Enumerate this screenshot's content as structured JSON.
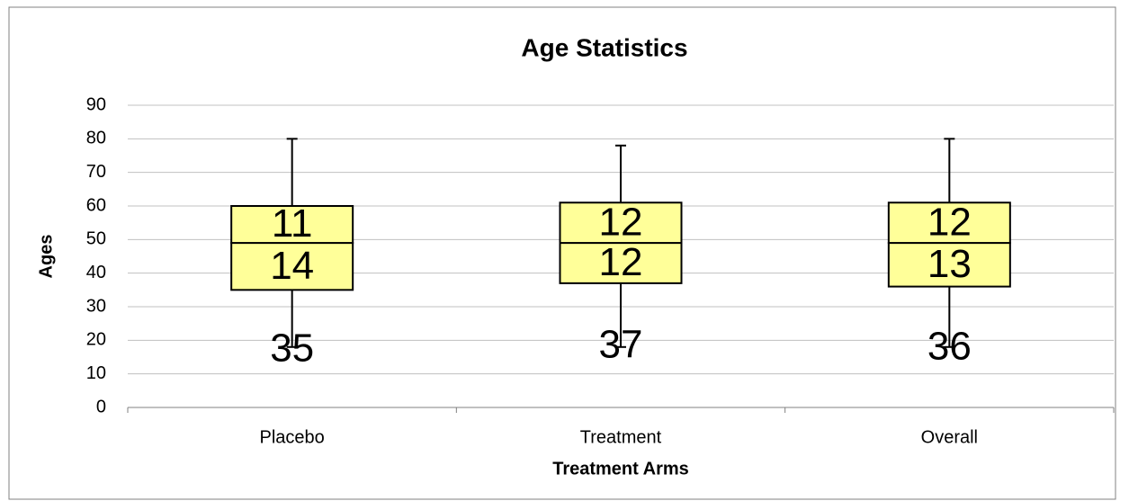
{
  "chart_data": {
    "type": "box",
    "title": "Age Statistics",
    "x_label": "Treatment Arms",
    "y_label": "Ages",
    "categories": [
      "Placebo",
      "Treatment",
      "Overall"
    ],
    "series": [
      {
        "values": [
          35,
          37,
          36
        ]
      },
      {
        "color": "#ffff99",
        "values": [
          14,
          12,
          13
        ]
      },
      {
        "color": "#ffff99",
        "values": [
          11,
          12,
          12
        ]
      }
    ],
    "whisker_low": [
      18,
      18,
      18
    ],
    "whisker_high": [
      80,
      78,
      80
    ],
    "ylim": [
      0,
      90
    ],
    "yticks": [
      0,
      10,
      20,
      30,
      40,
      50,
      60,
      70,
      80,
      90
    ],
    "grid": true
  }
}
